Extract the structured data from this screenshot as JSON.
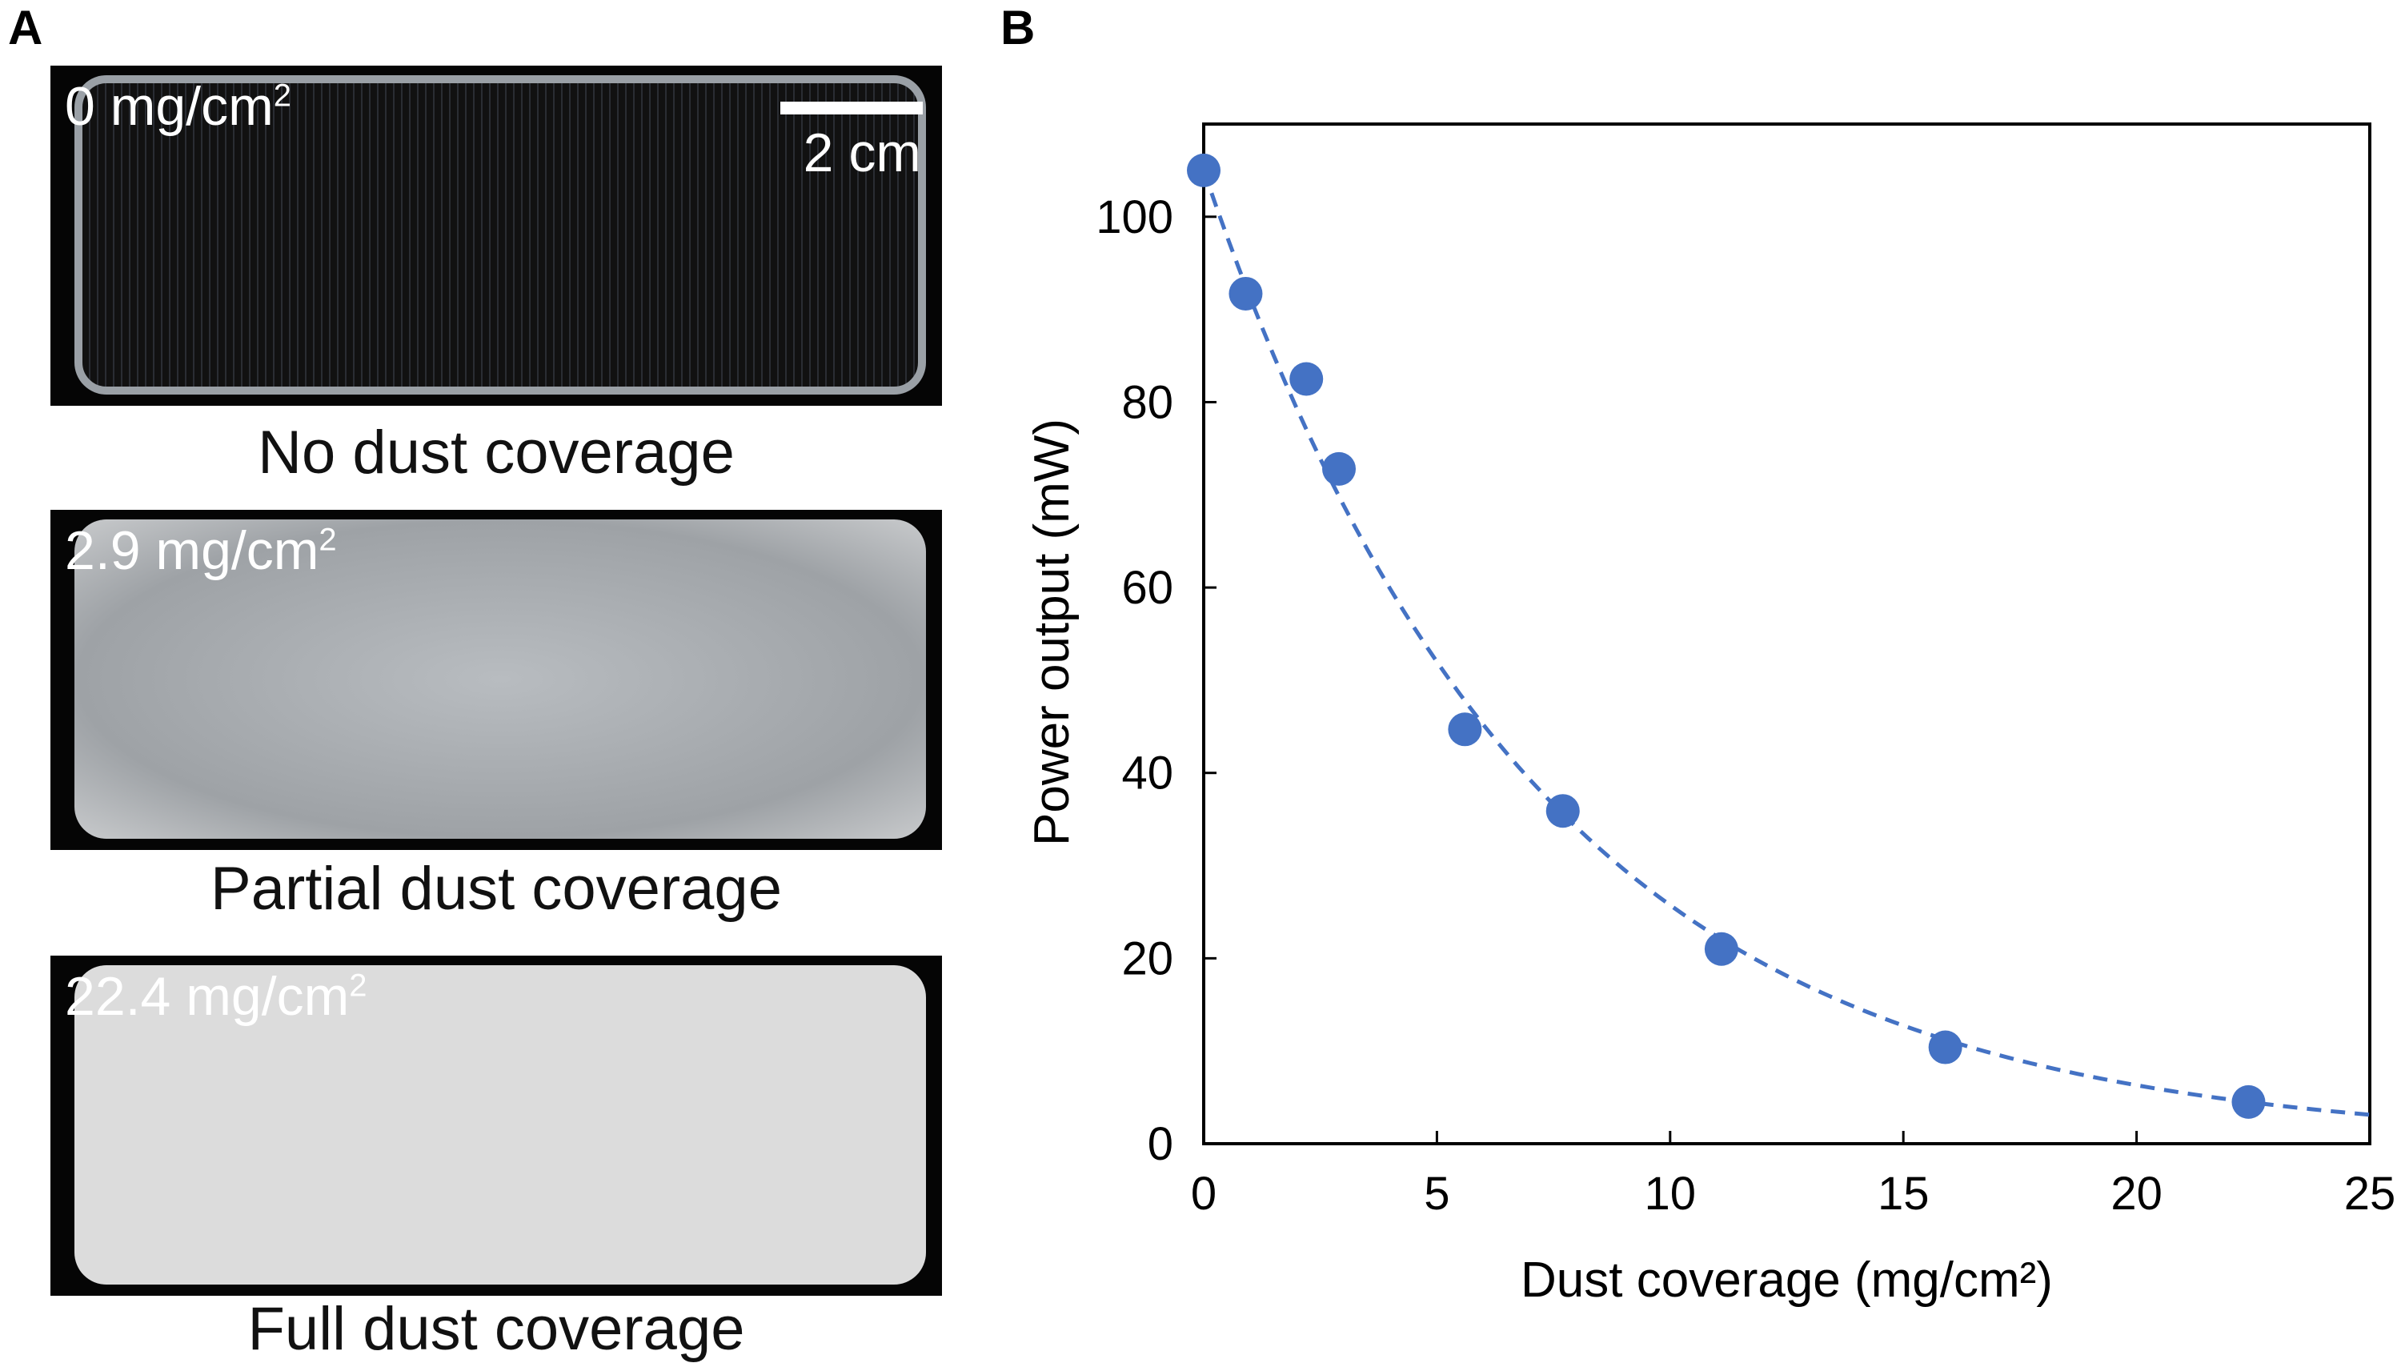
{
  "panel_a": {
    "label": "A",
    "photos": [
      {
        "coverage": "0 mg/cm",
        "superscript": "2",
        "caption": "No dust coverage"
      },
      {
        "coverage": "2.9 mg/cm",
        "superscript": "2",
        "caption": "Partial dust coverage"
      },
      {
        "coverage": "22.4 mg/cm",
        "superscript": "2",
        "caption": "Full dust coverage"
      }
    ],
    "scale_bar": "2 cm"
  },
  "panel_b": {
    "label": "B"
  },
  "chart_data": {
    "type": "scatter",
    "xlabel": "Dust coverage (mg/cm²)",
    "ylabel": "Power output (mW)",
    "xlim": [
      0,
      25
    ],
    "ylim": [
      0,
      105
    ],
    "xticks": [
      0,
      5,
      10,
      15,
      20,
      25
    ],
    "yticks": [
      0,
      20,
      40,
      60,
      80,
      100
    ],
    "grid": false,
    "x": [
      0,
      0.9,
      2.2,
      2.9,
      5.6,
      7.7,
      11.1,
      15.9,
      22.4
    ],
    "y": [
      105,
      91.7,
      82.5,
      72.8,
      44.7,
      35.9,
      21,
      10.4,
      4.5
    ],
    "fit": {
      "type": "exponential",
      "a": 105,
      "k": 0.1406,
      "style": "dashed"
    },
    "color": "#4472C4"
  }
}
